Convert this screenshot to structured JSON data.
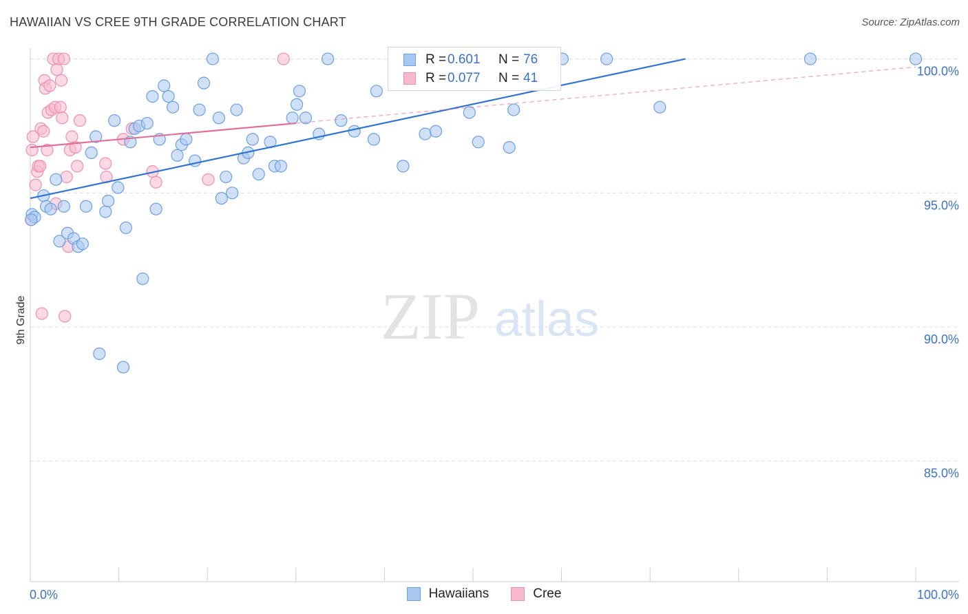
{
  "title": "HAWAIIAN VS CREE 9TH GRADE CORRELATION CHART",
  "source": "Source: ZipAtlas.com",
  "watermark": {
    "zip": "ZIP",
    "atlas": "atlas"
  },
  "colors": {
    "blue_fill": "#a9c8f0",
    "blue_stroke": "#6b9fe0",
    "blue_line": "#2f74d0",
    "pink_fill": "#f7b9cd",
    "pink_stroke": "#ee8fae",
    "pink_line": "#e0709a",
    "tick_text": "#3b73c4",
    "grid": "#dcdcdc"
  },
  "legend": {
    "rows": [
      {
        "r_label": "R =",
        "r_value": "0.601",
        "n_label": "N =",
        "n_value": "76"
      },
      {
        "r_label": "R =",
        "r_value": "0.077",
        "n_label": "N =",
        "n_value": "41"
      }
    ]
  },
  "bottom_legend": [
    "Hawaiians",
    "Cree"
  ],
  "chart_data": {
    "type": "scatter",
    "title": "HAWAIIAN VS CREE 9TH GRADE CORRELATION CHART",
    "xlabel": "",
    "ylabel": "9th Grade",
    "xlim": [
      0,
      100
    ],
    "ylim": [
      80.5,
      100.4
    ],
    "x_tick_labels": [
      "0.0%",
      "100.0%"
    ],
    "y_ticks": [
      85,
      90,
      95,
      100
    ],
    "y_tick_labels": [
      "85.0%",
      "90.0%",
      "95.0%",
      "100.0%"
    ],
    "grid": true,
    "series": [
      {
        "name": "Hawaiians",
        "r": 0.601,
        "n": 76,
        "trend": {
          "x": [
            0,
            74
          ],
          "y": [
            94.8,
            100.0
          ]
        },
        "points": [
          [
            0.2,
            94.2
          ],
          [
            0.5,
            94.1
          ],
          [
            1.5,
            94.9
          ],
          [
            1.8,
            94.5
          ],
          [
            2.3,
            94.4
          ],
          [
            2.9,
            95.5
          ],
          [
            3.3,
            93.2
          ],
          [
            3.8,
            94.5
          ],
          [
            4.2,
            93.5
          ],
          [
            4.9,
            93.3
          ],
          [
            5.4,
            93.0
          ],
          [
            5.9,
            93.1
          ],
          [
            6.3,
            94.5
          ],
          [
            6.9,
            96.5
          ],
          [
            7.4,
            97.1
          ],
          [
            7.8,
            89.0
          ],
          [
            8.5,
            94.3
          ],
          [
            8.8,
            94.7
          ],
          [
            9.5,
            97.7
          ],
          [
            9.9,
            95.2
          ],
          [
            10.5,
            88.5
          ],
          [
            10.8,
            93.7
          ],
          [
            11.3,
            96.9
          ],
          [
            11.8,
            97.4
          ],
          [
            12.3,
            97.5
          ],
          [
            12.7,
            91.8
          ],
          [
            13.2,
            97.6
          ],
          [
            13.8,
            98.6
          ],
          [
            14.2,
            94.4
          ],
          [
            14.6,
            97.0
          ],
          [
            15.1,
            99.0
          ],
          [
            15.6,
            98.6
          ],
          [
            16.1,
            98.2
          ],
          [
            16.6,
            96.4
          ],
          [
            17.1,
            96.8
          ],
          [
            17.6,
            97.0
          ],
          [
            18.6,
            96.2
          ],
          [
            19.1,
            98.1
          ],
          [
            19.6,
            99.1
          ],
          [
            20.6,
            100.0
          ],
          [
            21.3,
            97.8
          ],
          [
            21.6,
            94.8
          ],
          [
            22.1,
            95.6
          ],
          [
            22.8,
            95.0
          ],
          [
            23.3,
            98.1
          ],
          [
            24.1,
            96.3
          ],
          [
            24.6,
            96.5
          ],
          [
            25.1,
            97.0
          ],
          [
            25.8,
            95.7
          ],
          [
            27.1,
            96.9
          ],
          [
            27.6,
            96.0
          ],
          [
            28.3,
            96.0
          ],
          [
            29.6,
            97.8
          ],
          [
            30.1,
            98.3
          ],
          [
            30.4,
            98.8
          ],
          [
            31.1,
            97.8
          ],
          [
            32.6,
            97.2
          ],
          [
            33.6,
            100.0
          ],
          [
            35.1,
            97.7
          ],
          [
            36.6,
            97.3
          ],
          [
            38.8,
            97.0
          ],
          [
            39.1,
            98.8
          ],
          [
            42.1,
            96.0
          ],
          [
            44.6,
            97.2
          ],
          [
            44.9,
            100.0
          ],
          [
            45.8,
            97.3
          ],
          [
            49.6,
            98.0
          ],
          [
            50.6,
            96.9
          ],
          [
            54.1,
            96.7
          ],
          [
            54.6,
            98.1
          ],
          [
            60.1,
            100.0
          ],
          [
            65.1,
            100.0
          ],
          [
            71.1,
            98.2
          ],
          [
            88.1,
            100.0
          ],
          [
            100.0,
            100.0
          ],
          [
            0.1,
            94.0
          ]
        ]
      },
      {
        "name": "Cree",
        "r": 0.077,
        "n": 41,
        "trend": {
          "x": [
            0,
            30
          ],
          "y": [
            96.7,
            97.6
          ]
        },
        "trend_ext": {
          "x": [
            30,
            100
          ],
          "y": [
            97.6,
            99.7
          ]
        },
        "points": [
          [
            0.1,
            94.0
          ],
          [
            0.2,
            96.6
          ],
          [
            0.3,
            97.1
          ],
          [
            0.6,
            95.3
          ],
          [
            0.8,
            95.8
          ],
          [
            0.9,
            96.0
          ],
          [
            1.1,
            96.0
          ],
          [
            1.2,
            97.4
          ],
          [
            1.3,
            90.5
          ],
          [
            1.5,
            97.3
          ],
          [
            1.6,
            99.2
          ],
          [
            1.7,
            98.9
          ],
          [
            1.9,
            96.6
          ],
          [
            2.0,
            98.0
          ],
          [
            2.2,
            99.0
          ],
          [
            2.4,
            98.1
          ],
          [
            2.6,
            100.0
          ],
          [
            2.8,
            98.2
          ],
          [
            2.9,
            94.6
          ],
          [
            3.0,
            99.6
          ],
          [
            3.2,
            100.0
          ],
          [
            3.4,
            98.2
          ],
          [
            3.5,
            99.2
          ],
          [
            3.6,
            97.8
          ],
          [
            3.8,
            100.0
          ],
          [
            3.9,
            90.4
          ],
          [
            4.1,
            95.6
          ],
          [
            4.3,
            93.0
          ],
          [
            4.5,
            96.6
          ],
          [
            4.7,
            97.1
          ],
          [
            5.1,
            96.7
          ],
          [
            5.3,
            96.0
          ],
          [
            5.6,
            97.7
          ],
          [
            8.5,
            96.1
          ],
          [
            8.6,
            95.6
          ],
          [
            10.5,
            97.0
          ],
          [
            11.5,
            97.4
          ],
          [
            13.8,
            95.8
          ],
          [
            14.2,
            95.4
          ],
          [
            20.1,
            95.5
          ],
          [
            28.6,
            100.0
          ]
        ]
      }
    ]
  }
}
